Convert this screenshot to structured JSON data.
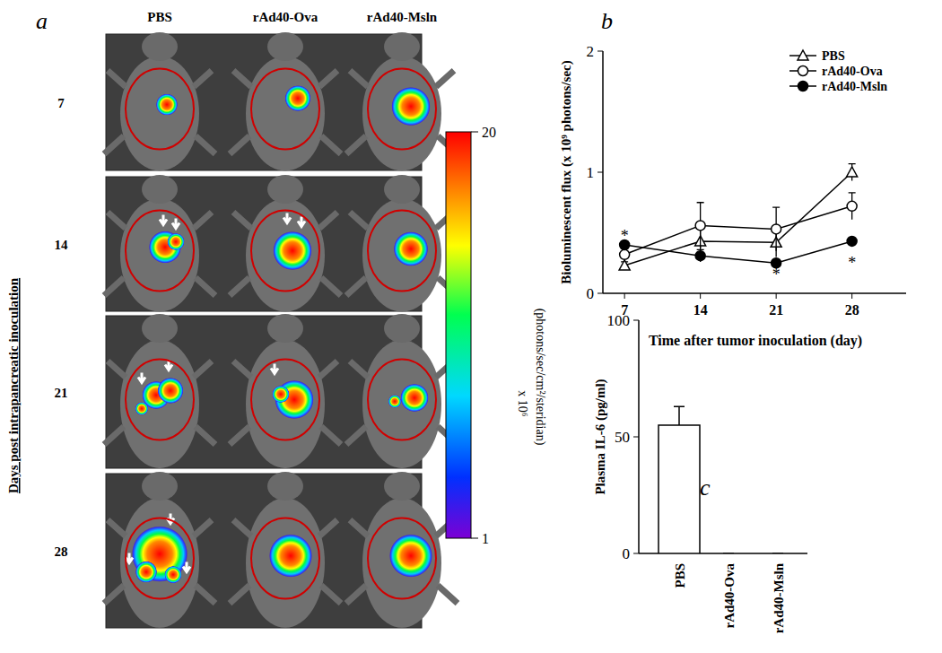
{
  "chart_data": [
    {
      "type": "image_grid",
      "panel_label": "a",
      "columns": [
        "PBS",
        "rAd40-Ova",
        "rAd40-Msln"
      ],
      "rows": [
        "7",
        "14",
        "21",
        "28"
      ],
      "row_label": "Days post intrapancreatic inoculation",
      "colorbar": {
        "range": [
          1,
          20
        ],
        "ticks": [
          1,
          20
        ],
        "label": "(photons/sec/cm²/steridian)",
        "multiplier": "x 10⁶"
      }
    },
    {
      "type": "line",
      "panel_label": "b",
      "x": [
        7,
        14,
        21,
        28
      ],
      "xlim": [
        5,
        33
      ],
      "xticks": [
        7,
        14,
        21,
        28
      ],
      "ylim": [
        0,
        2
      ],
      "yticks": [
        0,
        1,
        2
      ],
      "x_label": "Time after tumor inoculation (day)",
      "y_label": "Bioluminescent flux (x 10⁹ photons/sec)",
      "legend": "upper right",
      "series": [
        {
          "name": "PBS",
          "color": "#000000",
          "marker": "open-triangle",
          "values": [
            0.23,
            0.43,
            0.42,
            1.0
          ],
          "errors": [
            0.03,
            0.15,
            0.12,
            0.07
          ]
        },
        {
          "name": "rAd40-Ova",
          "color": "#000000",
          "marker": "open-circle",
          "values": [
            0.32,
            0.56,
            0.53,
            0.72
          ],
          "errors": [
            0.05,
            0.19,
            0.18,
            0.11
          ]
        },
        {
          "name": "rAd40-Msln",
          "color": "#000000",
          "marker": "filled-circle",
          "values": [
            0.4,
            0.31,
            0.25,
            0.43
          ],
          "errors": [
            0.03,
            0.05,
            0.02,
            0.02
          ]
        }
      ],
      "annotations": [
        {
          "text": "*",
          "x": 7,
          "y": 0.49
        },
        {
          "text": "*",
          "x": 21,
          "y": 0.17
        },
        {
          "text": "*",
          "x": 28,
          "y": 0.27
        }
      ]
    },
    {
      "type": "bar",
      "panel_label": "c",
      "categories": [
        "PBS",
        "rAd40-Ova",
        "rAd40-Msln"
      ],
      "values": [
        55,
        0,
        0
      ],
      "errors": [
        8,
        0,
        0
      ],
      "color": "#ffffff",
      "ylim": [
        0,
        100
      ],
      "yticks": [
        0,
        50,
        100
      ],
      "y_label": "Plasma IL-6 (pg/ml)"
    }
  ]
}
